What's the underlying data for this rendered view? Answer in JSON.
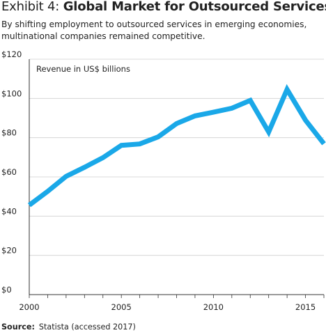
{
  "header": {
    "title_lead": "Exhibit 4: ",
    "title_bold": "Global Market for Outsourced Services",
    "subtitle": "By shifting employment to outsourced services in emerging economies, multinational companies remained competitive."
  },
  "footer": {
    "source_label": "Source:",
    "source_text": "Statista (accessed 2017)"
  },
  "chart_data": {
    "type": "line",
    "title": "Global Market for Outsourced Services",
    "ylabel": "Revenue in US$ billions",
    "xlabel": "",
    "xlim": [
      2000,
      2016
    ],
    "ylim": [
      0,
      120
    ],
    "x_ticks": [
      2000,
      2005,
      2010,
      2015
    ],
    "y_ticks": [
      0,
      20,
      40,
      60,
      80,
      100,
      120
    ],
    "y_tick_labels": [
      "$0",
      "$20",
      "$40",
      "$60",
      "$80",
      "$100",
      "$120"
    ],
    "grid": "horizontal",
    "line_color": "#1aa8e8",
    "series": [
      {
        "x": [
          2000,
          2001,
          2002,
          2003,
          2004,
          2005,
          2006,
          2007,
          2008,
          2009,
          2010,
          2011,
          2012,
          2013,
          2014,
          2015,
          2016
        ],
        "values": [
          45.6,
          52.6,
          60.3,
          64.9,
          69.8,
          76.1,
          76.8,
          80.4,
          87.2,
          91.1,
          93,
          95,
          99,
          82.9,
          104.6,
          88.9,
          76.9
        ]
      }
    ]
  }
}
